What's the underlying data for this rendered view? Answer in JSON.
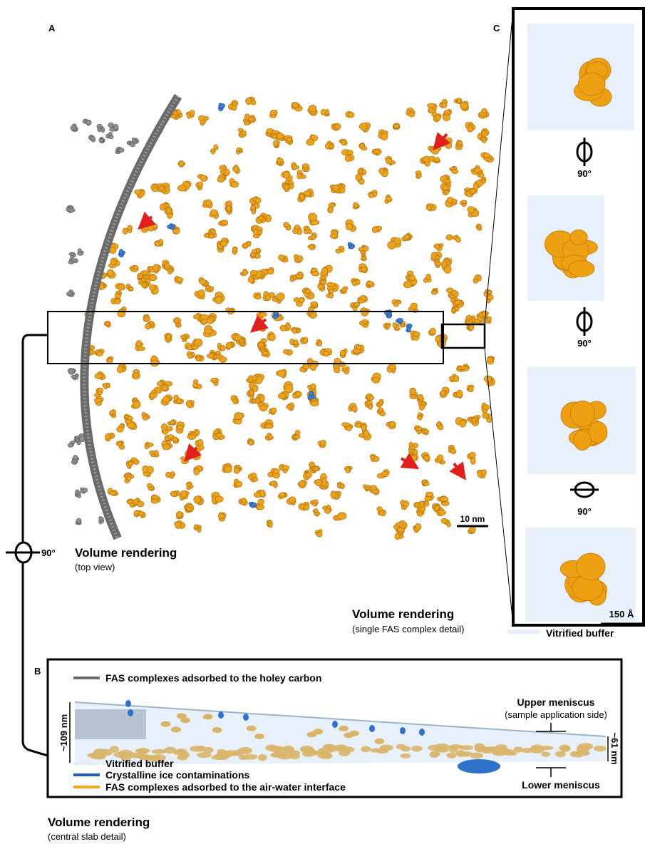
{
  "panel_a": {
    "label": "A",
    "scale_bar": "10 nm",
    "rotation": "90°",
    "caption": {
      "title": "Volume rendering",
      "subtitle": "(top view)"
    }
  },
  "panel_c": {
    "label": "C",
    "rotations": [
      "90°",
      "90°",
      "90°"
    ],
    "scale_bar": "150 Å",
    "legend": "Vitrified buffer",
    "caption": {
      "title": "Volume rendering",
      "subtitle": "(single FAS complex detail)"
    }
  },
  "panel_b": {
    "label": "B",
    "legend_top": "FAS complexes adsorbed to the holey carbon",
    "thickness_left": "~109 nm",
    "thickness_right": "~61 nm",
    "upper_meniscus": {
      "title": "Upper meniscus",
      "subtitle": "(sample application side)"
    },
    "lower_meniscus": "Lower meniscus",
    "legend": [
      "Vitrified buffer",
      "Crystalline ice contaminations",
      "FAS complexes adsorbed to the air-water interface"
    ],
    "caption": {
      "title": "Volume rendering",
      "subtitle": "(central slab detail)"
    }
  }
}
